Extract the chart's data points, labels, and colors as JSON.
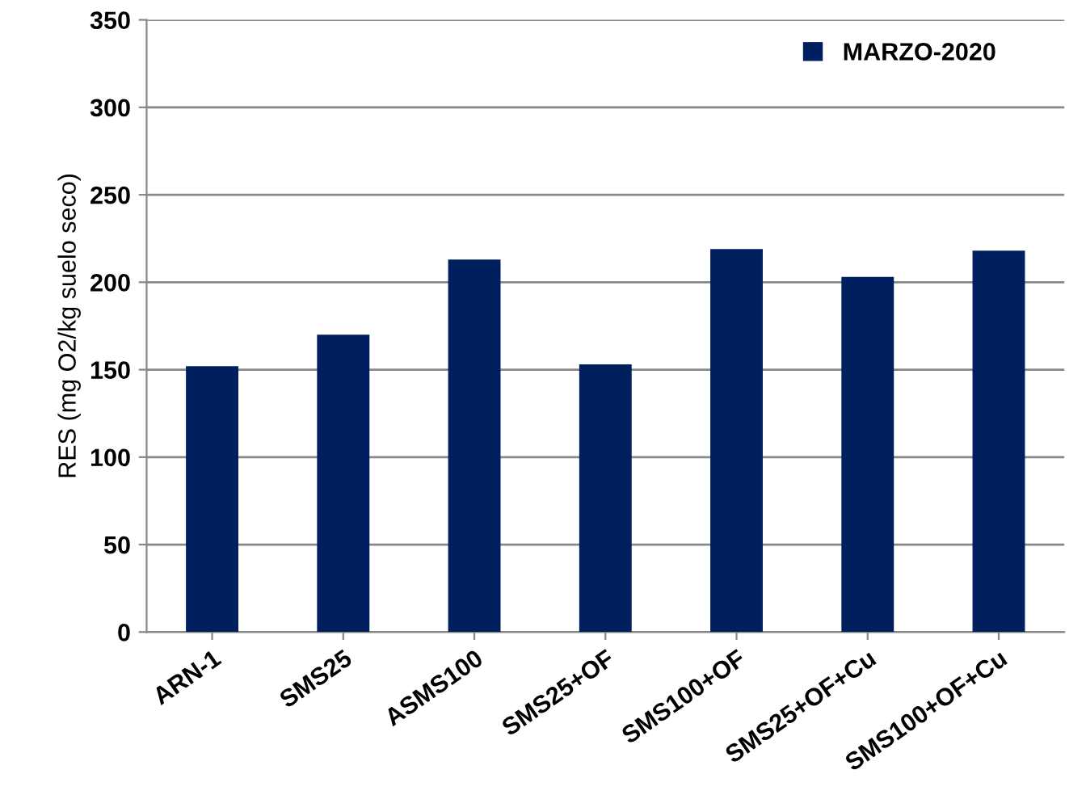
{
  "chart_data": {
    "type": "bar",
    "ylabel": "RES (mg O2/kg suelo seco)",
    "categories": [
      "ARN-1",
      "SMS25",
      "ASMS100",
      "SMS25+OF",
      "SMS100+OF",
      "SMS25+OF+Cu",
      "SMS100+OF+Cu"
    ],
    "series": [
      {
        "name": "MARZO-2020",
        "color": "#001f5f",
        "values": [
          152,
          170,
          213,
          153,
          219,
          203,
          218
        ]
      }
    ],
    "ylim": [
      0,
      350
    ],
    "yticks": [
      0,
      50,
      100,
      150,
      200,
      250,
      300,
      350
    ],
    "grid": "y",
    "legend": "top right"
  }
}
